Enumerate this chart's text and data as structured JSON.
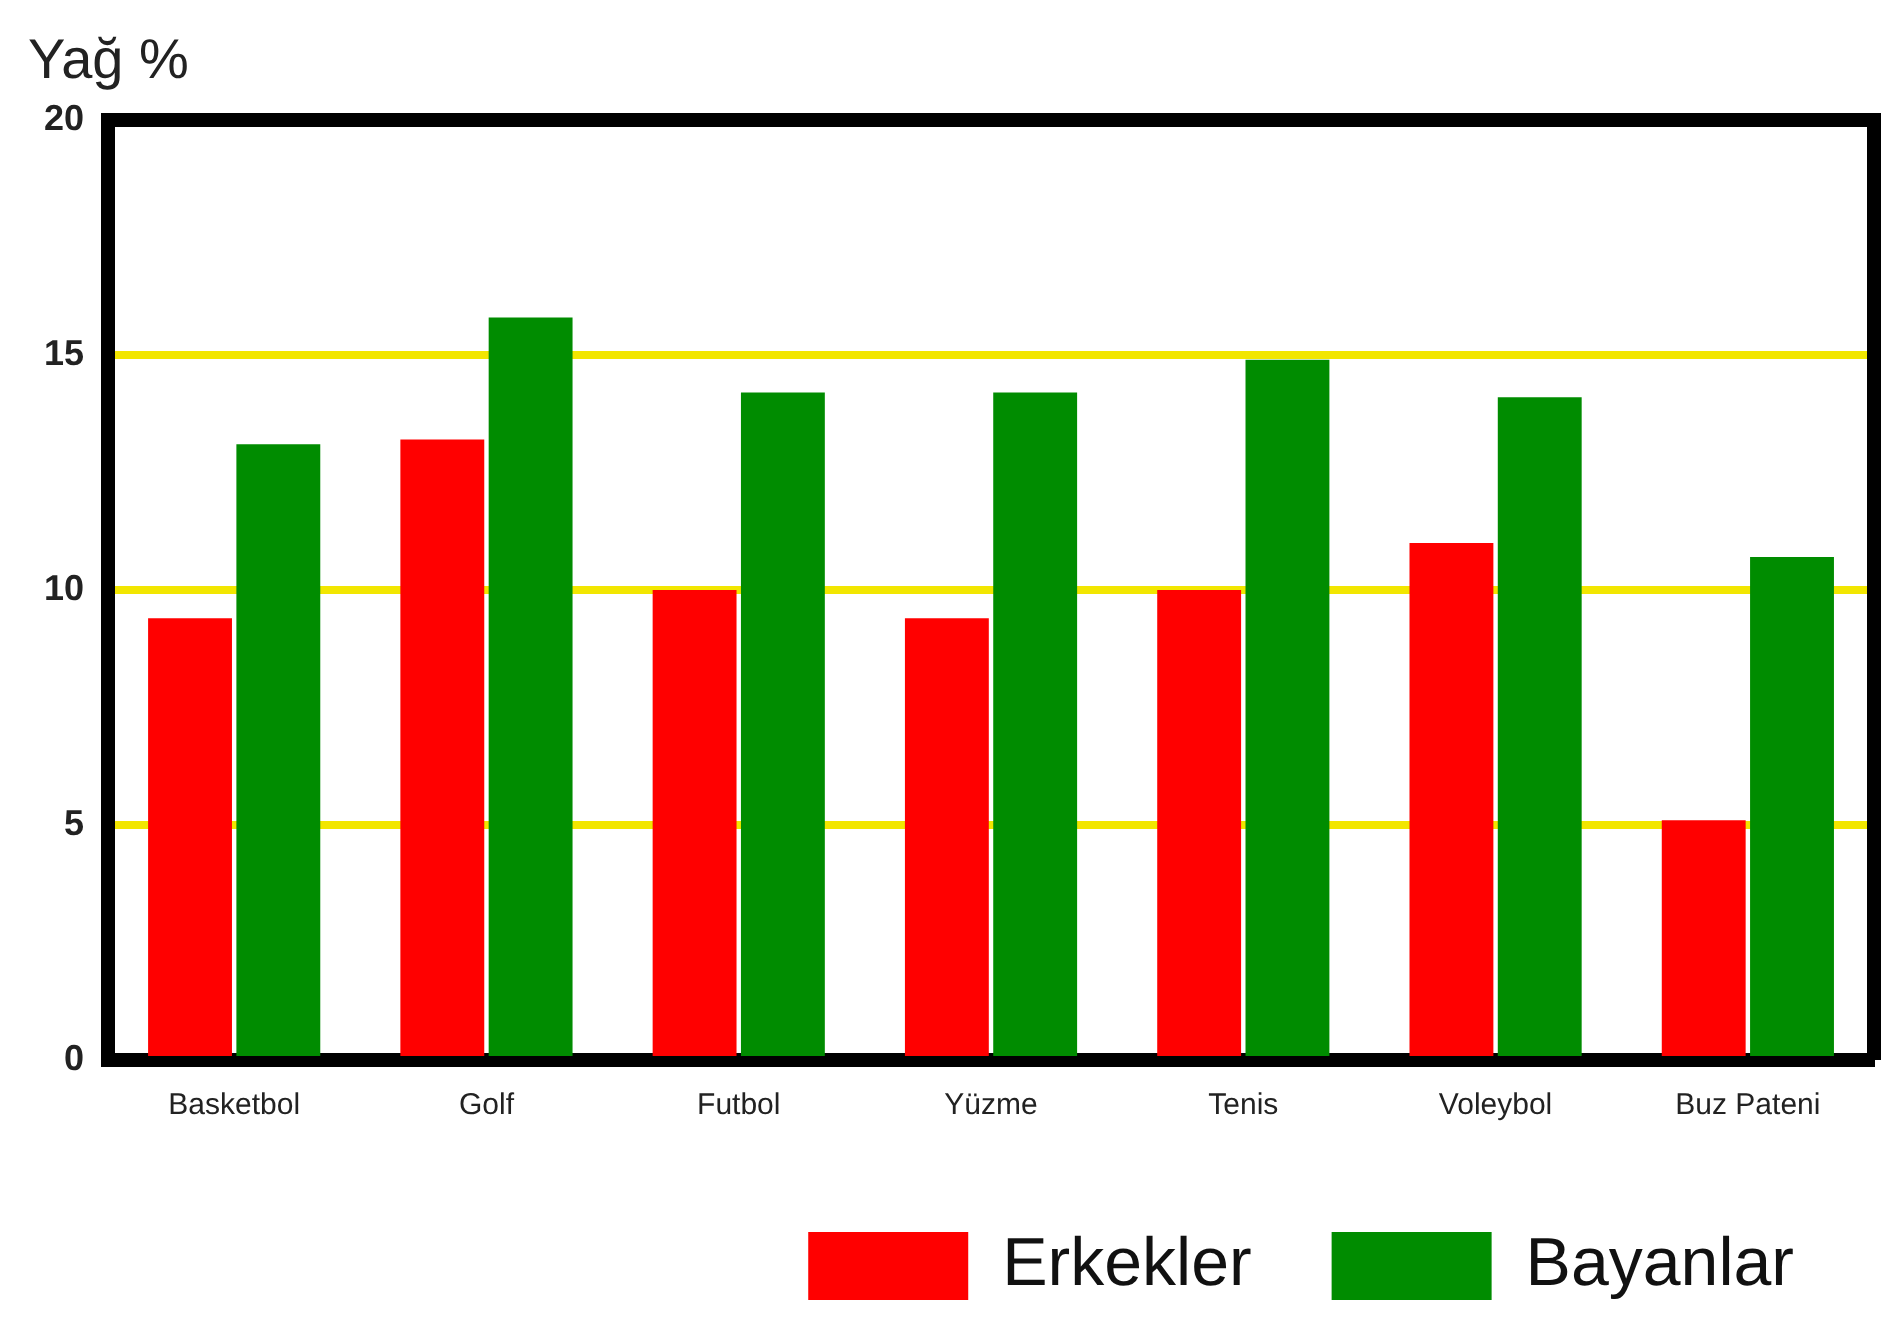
{
  "chart_data": {
    "type": "bar",
    "ylabel": "Yağ %",
    "categories": [
      "Basketbol",
      "Golf",
      "Futbol",
      "Yüzme",
      "Tenis",
      "Voleybol",
      "Buz Pateni"
    ],
    "series": [
      {
        "name": "Erkekler",
        "color": "#ff0000",
        "values": [
          9.4,
          13.2,
          10,
          9.4,
          10,
          11,
          5.1
        ]
      },
      {
        "name": "Bayanlar",
        "color": "#008c00",
        "values": [
          13.1,
          15.8,
          14.2,
          14.2,
          14.9,
          14.1,
          10.7
        ]
      }
    ],
    "ylim": [
      0,
      20
    ],
    "yticks": [
      0,
      5,
      10,
      15,
      20
    ],
    "grid": "y",
    "legend": "bottom"
  }
}
